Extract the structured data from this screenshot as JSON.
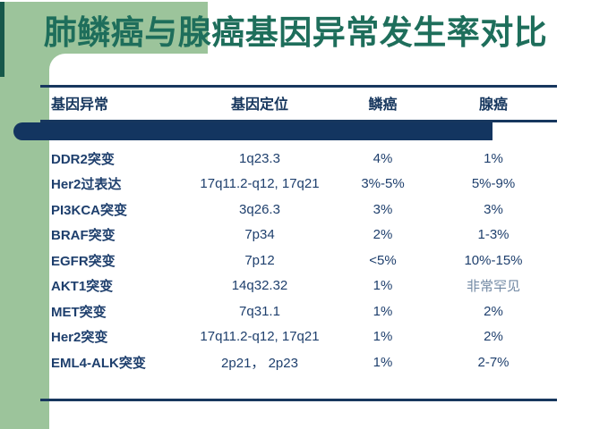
{
  "slide": {
    "title": "肺鳞癌与腺癌基因异常发生率对比",
    "colors": {
      "background_green": "#9cc49b",
      "edge_accent_teal": "#16584a",
      "title_teal": "#1e6e5b",
      "navy": "#17375e",
      "capsule_navy": "#133560",
      "muted_blue_gray": "#7289a4"
    },
    "table": {
      "headers": [
        "基因异常",
        "基因定位",
        "鳞癌",
        "腺癌"
      ],
      "rows": [
        {
          "gene": "DDR2突变",
          "locus": "1q23.3",
          "squamous": "4%",
          "adeno": "1%"
        },
        {
          "gene": "Her2过表达",
          "locus": "17q11.2-q12, 17q21",
          "squamous": "3%-5%",
          "adeno": "5%-9%"
        },
        {
          "gene": "PI3KCA突变",
          "locus": "3q26.3",
          "squamous": "3%",
          "adeno": "3%"
        },
        {
          "gene": "BRAF突变",
          "locus": "7p34",
          "squamous": "2%",
          "adeno": "1-3%"
        },
        {
          "gene": "EGFR突变",
          "locus": "7p12",
          "squamous": "<5%",
          "adeno": "10%-15%"
        },
        {
          "gene": "AKT1突变",
          "locus": "14q32.32",
          "squamous": "1%",
          "adeno": "非常罕见",
          "adeno_muted": true
        },
        {
          "gene": "MET突变",
          "locus": "7q31.1",
          "squamous": "1%",
          "adeno": "2%"
        },
        {
          "gene": "Her2突变",
          "locus": "17q11.2-q12, 17q21",
          "squamous": "1%",
          "adeno": "2%"
        },
        {
          "gene": "EML4-ALK突变",
          "locus": "2p21， 2p23",
          "squamous": "1%",
          "adeno": "2-7%"
        }
      ]
    }
  }
}
